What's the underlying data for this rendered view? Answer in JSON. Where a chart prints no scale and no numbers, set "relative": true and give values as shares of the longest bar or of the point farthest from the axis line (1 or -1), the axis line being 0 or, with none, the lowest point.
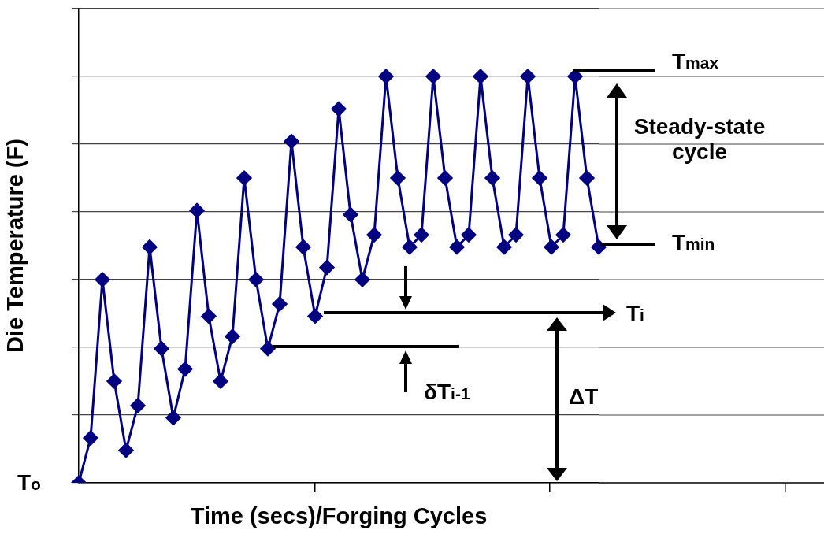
{
  "chart_data": {
    "type": "line",
    "xlabel": "Time (secs)/Forging Cycles",
    "ylabel": "Die Temperature (F)",
    "relative": true,
    "marker": "diamond",
    "line_style": "solid",
    "grid": "y",
    "color": "#000080",
    "categories": [
      null,
      null,
      null,
      null,
      null,
      null,
      null,
      null,
      null,
      null,
      null,
      null,
      null,
      null,
      null,
      null,
      null,
      null,
      null,
      null,
      null,
      null,
      null,
      null,
      null,
      null,
      null,
      null,
      null,
      null,
      null,
      null,
      null,
      null,
      null,
      null,
      null,
      null,
      null,
      null,
      null,
      null,
      null,
      null,
      null
    ],
    "values": [
      0,
      0.11,
      0.5,
      0.25,
      0.08,
      0.19,
      0.58,
      0.33,
      0.16,
      0.28,
      0.67,
      0.41,
      0.25,
      0.36,
      0.75,
      0.5,
      0.33,
      0.44,
      0.84,
      0.58,
      0.41,
      0.53,
      0.92,
      0.66,
      0.5,
      0.61,
      1,
      0.75,
      0.58,
      0.61,
      1,
      0.75,
      0.58,
      0.61,
      1,
      0.75,
      0.58,
      0.61,
      1,
      0.75,
      0.58,
      0.61,
      1,
      0.75,
      0.58
    ],
    "annotations": [
      "T$_{o}$",
      "T$_{max}$",
      "Steady-state cycle",
      "T$_{min}$",
      "T$_{i}$",
      "δT$_{i-1}$",
      "ΔT"
    ]
  }
}
